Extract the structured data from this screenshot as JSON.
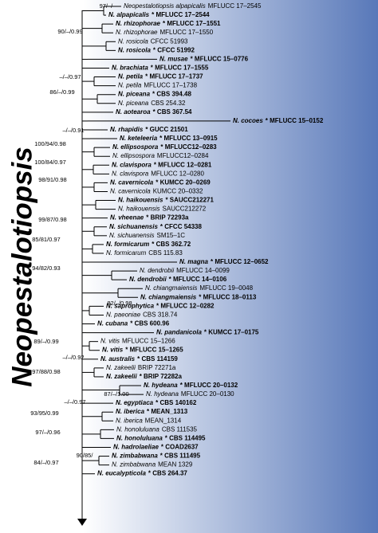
{
  "title": "Neopestalotiopsis",
  "taxa": [
    {
      "name": "Neopestalotiopsis alpapicalis",
      "strain": "MFLUCC 17–2545",
      "bold": false
    },
    {
      "name": "N. alpapicalis",
      "strain": "* MFLUCC 17–2544",
      "bold": true
    },
    {
      "name": "N. rhizophorae",
      "strain": "* MFLUCC 17–1551",
      "bold": true
    },
    {
      "name": "N. rhizophorae",
      "strain": "MFLUCC 17–1550",
      "bold": false
    },
    {
      "name": "N. rosicola",
      "strain": "CFCC 51993",
      "bold": false
    },
    {
      "name": "N. rosicola",
      "strain": "* CFCC 51992",
      "bold": true
    },
    {
      "name": "N. musae",
      "strain": "* MFLUCC 15–0776",
      "bold": true
    },
    {
      "name": "N. brachiata",
      "strain": "* MFLUCC 17–1555",
      "bold": true
    },
    {
      "name": "N. petila",
      "strain": "* MFLUCC 17–1737",
      "bold": true
    },
    {
      "name": "N. petila",
      "strain": "MFLUCC 17–1738",
      "bold": false
    },
    {
      "name": "N. piceana",
      "strain": "* CBS 394.48",
      "bold": true
    },
    {
      "name": "N. piceana",
      "strain": "CBS 254.32",
      "bold": false
    },
    {
      "name": "N. aotearoa",
      "strain": "* CBS 367.54",
      "bold": true
    },
    {
      "name": "N. cocoes",
      "strain": "* MFLUCC 15–0152",
      "bold": true
    },
    {
      "name": "N. rhapidis",
      "strain": "* GUCC 21501",
      "bold": true
    },
    {
      "name": "N. keteleeria",
      "strain": "* MFLUCC 13–0915",
      "bold": true
    },
    {
      "name": "N. ellipsospora",
      "strain": "* MFLUCC12–0283",
      "bold": true
    },
    {
      "name": "N. ellipsospora",
      "strain": "MFLUCC12–0284",
      "bold": false
    },
    {
      "name": "N. clavispora",
      "strain": "* MFLUCC 12–0281",
      "bold": true
    },
    {
      "name": "N. clavispora",
      "strain": "MFLUCC 12–0280",
      "bold": false
    },
    {
      "name": "N. cavernicola",
      "strain": "* KUMCC 20–0269",
      "bold": true
    },
    {
      "name": "N. cavernicola",
      "strain": "KUMCC 20–0332",
      "bold": false
    },
    {
      "name": "N. haikouensis",
      "strain": "* SAUCC212271",
      "bold": true
    },
    {
      "name": "N. haikouensis",
      "strain": "SAUCC212272",
      "bold": false
    },
    {
      "name": "N. vheenae",
      "strain": "* BRIP 72293a",
      "bold": true
    },
    {
      "name": "N. sichuanensis",
      "strain": "* CFCC 54338",
      "bold": true
    },
    {
      "name": "N. sichuanensis",
      "strain": "SM15–1C",
      "bold": false
    },
    {
      "name": "N. formicarum",
      "strain": "* CBS 362.72",
      "bold": true
    },
    {
      "name": "N. formicarum",
      "strain": "CBS 115.83",
      "bold": false
    },
    {
      "name": "N. magna",
      "strain": "* MFLUCC 12–0652",
      "bold": true
    },
    {
      "name": "N. dendrobii",
      "strain": "MFLUCC 14–0099",
      "bold": false
    },
    {
      "name": "N. dendrobii",
      "strain": "* MFLUCC 14–0106",
      "bold": true
    },
    {
      "name": "N. chiangmaiensis",
      "strain": "MFLUCC 19–0048",
      "bold": false
    },
    {
      "name": "N. chiangmaiensis",
      "strain": "* MFLUCC 18–0113",
      "bold": true
    },
    {
      "name": "N. saprophytica",
      "strain": "* MFLUCC 12–0282",
      "bold": true
    },
    {
      "name": "N. paeoniae",
      "strain": "CBS 318.74",
      "bold": false
    },
    {
      "name": "N. cubana",
      "strain": "* CBS 600.96",
      "bold": true
    },
    {
      "name": "N. pandanicola",
      "strain": "* KUMCC 17–0175",
      "bold": true
    },
    {
      "name": "N. vitis",
      "strain": "MFLUCC 15–1266",
      "bold": false
    },
    {
      "name": "N. vitis",
      "strain": "* MFLUCC 15–1265",
      "bold": true
    },
    {
      "name": "N. australis",
      "strain": "* CBS 114159",
      "bold": true
    },
    {
      "name": "N. zakeelii",
      "strain": "BRIP 72271a",
      "bold": false
    },
    {
      "name": "N. zakeelii",
      "strain": "* BRIP 72282a",
      "bold": true
    },
    {
      "name": "N. hydeana",
      "strain": "* MFLUCC 20–0132",
      "bold": true
    },
    {
      "name": "N. hydeana",
      "strain": "MFLUCC 20–0130",
      "bold": false
    },
    {
      "name": "N. egyptiaca",
      "strain": "* CBS 140162",
      "bold": true
    },
    {
      "name": "N. iberica",
      "strain": "* MEAN_1313",
      "bold": true
    },
    {
      "name": "N. iberica",
      "strain": "MEAN_1314",
      "bold": false
    },
    {
      "name": "N. honoluluana",
      "strain": "CBS 111535",
      "bold": false
    },
    {
      "name": "N. honoluluana",
      "strain": "* CBS 114495",
      "bold": true
    },
    {
      "name": "N. hadrolaeliae",
      "strain": "* COAD2637",
      "bold": true
    },
    {
      "name": "N. zimbabwana",
      "strain": "* CBS 111495",
      "bold": true
    },
    {
      "name": "N. zimbabwana",
      "strain": "MEAN 1329",
      "bold": false
    },
    {
      "name": "N. eucalypticola",
      "strain": "* CBS 264.37",
      "bold": true
    }
  ],
  "supports": [
    "97/–/–",
    "90/–/0.99",
    "–/–/0.97",
    "86/–/0.99",
    "–/–/0.91",
    "100/94/0.98",
    "100/84/0.97",
    "98/91/0.98",
    "99/87/0.98",
    "85/81/0.97",
    "94/82/0.93",
    "82/–/0.98",
    "89/–/0.99",
    "–/–/0.92",
    "97/88/0.98",
    "87/–/1.00",
    "–/–/0.97",
    "93/95/0.99",
    "97/–/0.96",
    "90/85/",
    "84/–/0.97"
  ]
}
